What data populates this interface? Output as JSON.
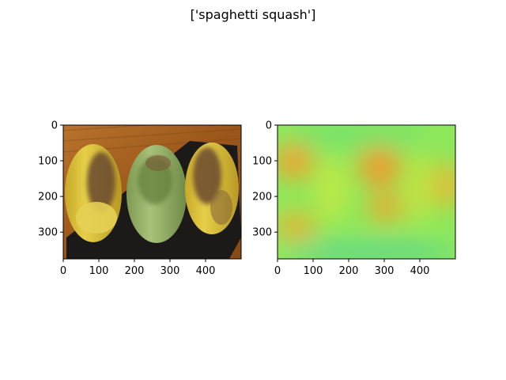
{
  "figure": {
    "title": "['spaghetti squash']"
  },
  "chart_data": [
    {
      "type": "image",
      "panel": "left",
      "content": "photo of three rice-paper spring rolls (yellow, green, yellow) with mushroom filling on a black plate over a wooden table",
      "xlim": [
        0,
        500
      ],
      "ylim": [
        375,
        0
      ],
      "xticks": [
        0,
        100,
        200,
        300,
        400
      ],
      "yticks": [
        0,
        100,
        200,
        300
      ],
      "colors": {
        "wood": "#a8601f",
        "plate": "#1c1a18",
        "roll_yellow": "#d9c23a",
        "roll_green": "#9cb46a",
        "filling": "#6b4a2e"
      }
    },
    {
      "type": "heatmap",
      "panel": "right",
      "content": "noisy saliency map with orange/yellow blobs on a green background",
      "xlim": [
        0,
        500
      ],
      "ylim": [
        375,
        0
      ],
      "xticks": [
        0,
        100,
        200,
        300,
        400
      ],
      "yticks": [
        0,
        100,
        200,
        300
      ],
      "colors": {
        "background": "#8ee85a",
        "high": "#f4a030",
        "mid": "#d6e640",
        "low": "#3cc8a0"
      }
    }
  ]
}
